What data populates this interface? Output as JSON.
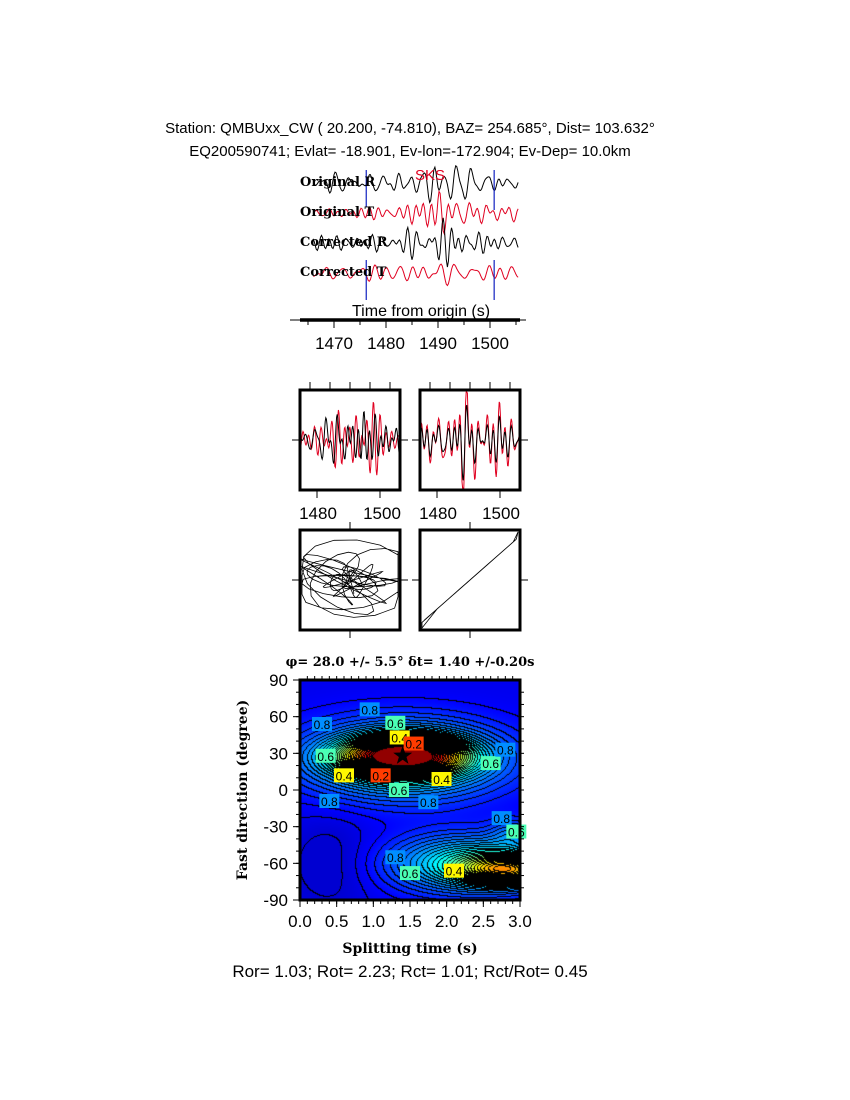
{
  "header": {
    "line1": "Station: QMBUxx_CW (  20.200,  -74.810), BAZ=  254.685°, Dist=  103.632°",
    "line2": "EQ200590741; Evlat= -18.901, Ev-lon=-172.904; Ev-Dep= 10.0km"
  },
  "footer": "Ror= 1.03; Rot= 2.23; Rct= 1.01; Rct/Rot= 0.45",
  "colors": {
    "radial": "#000000",
    "transverse": "#e00020",
    "window_marker": "#1020c0",
    "phase_label": "#e00020"
  },
  "chart_data": [
    {
      "type": "line",
      "phase_label": "SKS",
      "trace_labels": [
        "Original R",
        "Original T",
        "Corrected R",
        "Corrected T"
      ],
      "xlabel": "Time from origin (s)",
      "xlim": [
        1463,
        1506
      ],
      "xticks": [
        1470,
        1480,
        1490,
        1500
      ],
      "window": [
        1476.2,
        1500.8
      ]
    },
    {
      "type": "line",
      "panels": [
        "original",
        "corrected"
      ],
      "xticks": [
        1480,
        1500
      ],
      "xlim": [
        1476,
        1501
      ]
    },
    {
      "type": "scatter",
      "panels": [
        "original-particle-motion",
        "corrected-particle-motion"
      ]
    },
    {
      "type": "heatmap",
      "title": "φ= 28.0 +/- 5.5° δt= 1.40 +/-0.20s",
      "xlabel": "Splitting time (s)",
      "ylabel": "Fast direction (degree)",
      "xlim": [
        0,
        3
      ],
      "ylim": [
        -90,
        90
      ],
      "xticks": [
        "0.0",
        "0.5",
        "1.0",
        "1.5",
        "2.0",
        "2.5",
        "3.0"
      ],
      "yticks": [
        "90",
        "60",
        "30",
        "0",
        "-30",
        "-60",
        "-90"
      ],
      "best": {
        "dt": 1.4,
        "phi": 28.0
      },
      "colormap": "jet-reversed",
      "contour_labels": [
        {
          "text": "0.8",
          "dt": 0.95,
          "phi": 66
        },
        {
          "text": "0.8",
          "dt": 0.3,
          "phi": 54
        },
        {
          "text": "0.6",
          "dt": 1.3,
          "phi": 55
        },
        {
          "text": "0.4",
          "dt": 1.36,
          "phi": 43
        },
        {
          "text": "0.2",
          "dt": 1.55,
          "phi": 38
        },
        {
          "text": "0.6",
          "dt": 0.35,
          "phi": 28
        },
        {
          "text": "0.4",
          "dt": 0.6,
          "phi": 12
        },
        {
          "text": "0.2",
          "dt": 1.1,
          "phi": 12
        },
        {
          "text": "0.4",
          "dt": 1.93,
          "phi": 9
        },
        {
          "text": "0.6",
          "dt": 2.6,
          "phi": 22
        },
        {
          "text": "0.8",
          "dt": 2.8,
          "phi": 33
        },
        {
          "text": "0.6",
          "dt": 1.35,
          "phi": 0
        },
        {
          "text": "0.8",
          "dt": 0.4,
          "phi": -9
        },
        {
          "text": "0.8",
          "dt": 1.75,
          "phi": -10
        },
        {
          "text": "0.8",
          "dt": 2.75,
          "phi": -23
        },
        {
          "text": "0.6",
          "dt": 2.95,
          "phi": -34
        },
        {
          "text": "0.8",
          "dt": 1.3,
          "phi": -55
        },
        {
          "text": "0.6",
          "dt": 1.5,
          "phi": -68
        },
        {
          "text": "0.4",
          "dt": 2.1,
          "phi": -66
        }
      ]
    }
  ]
}
